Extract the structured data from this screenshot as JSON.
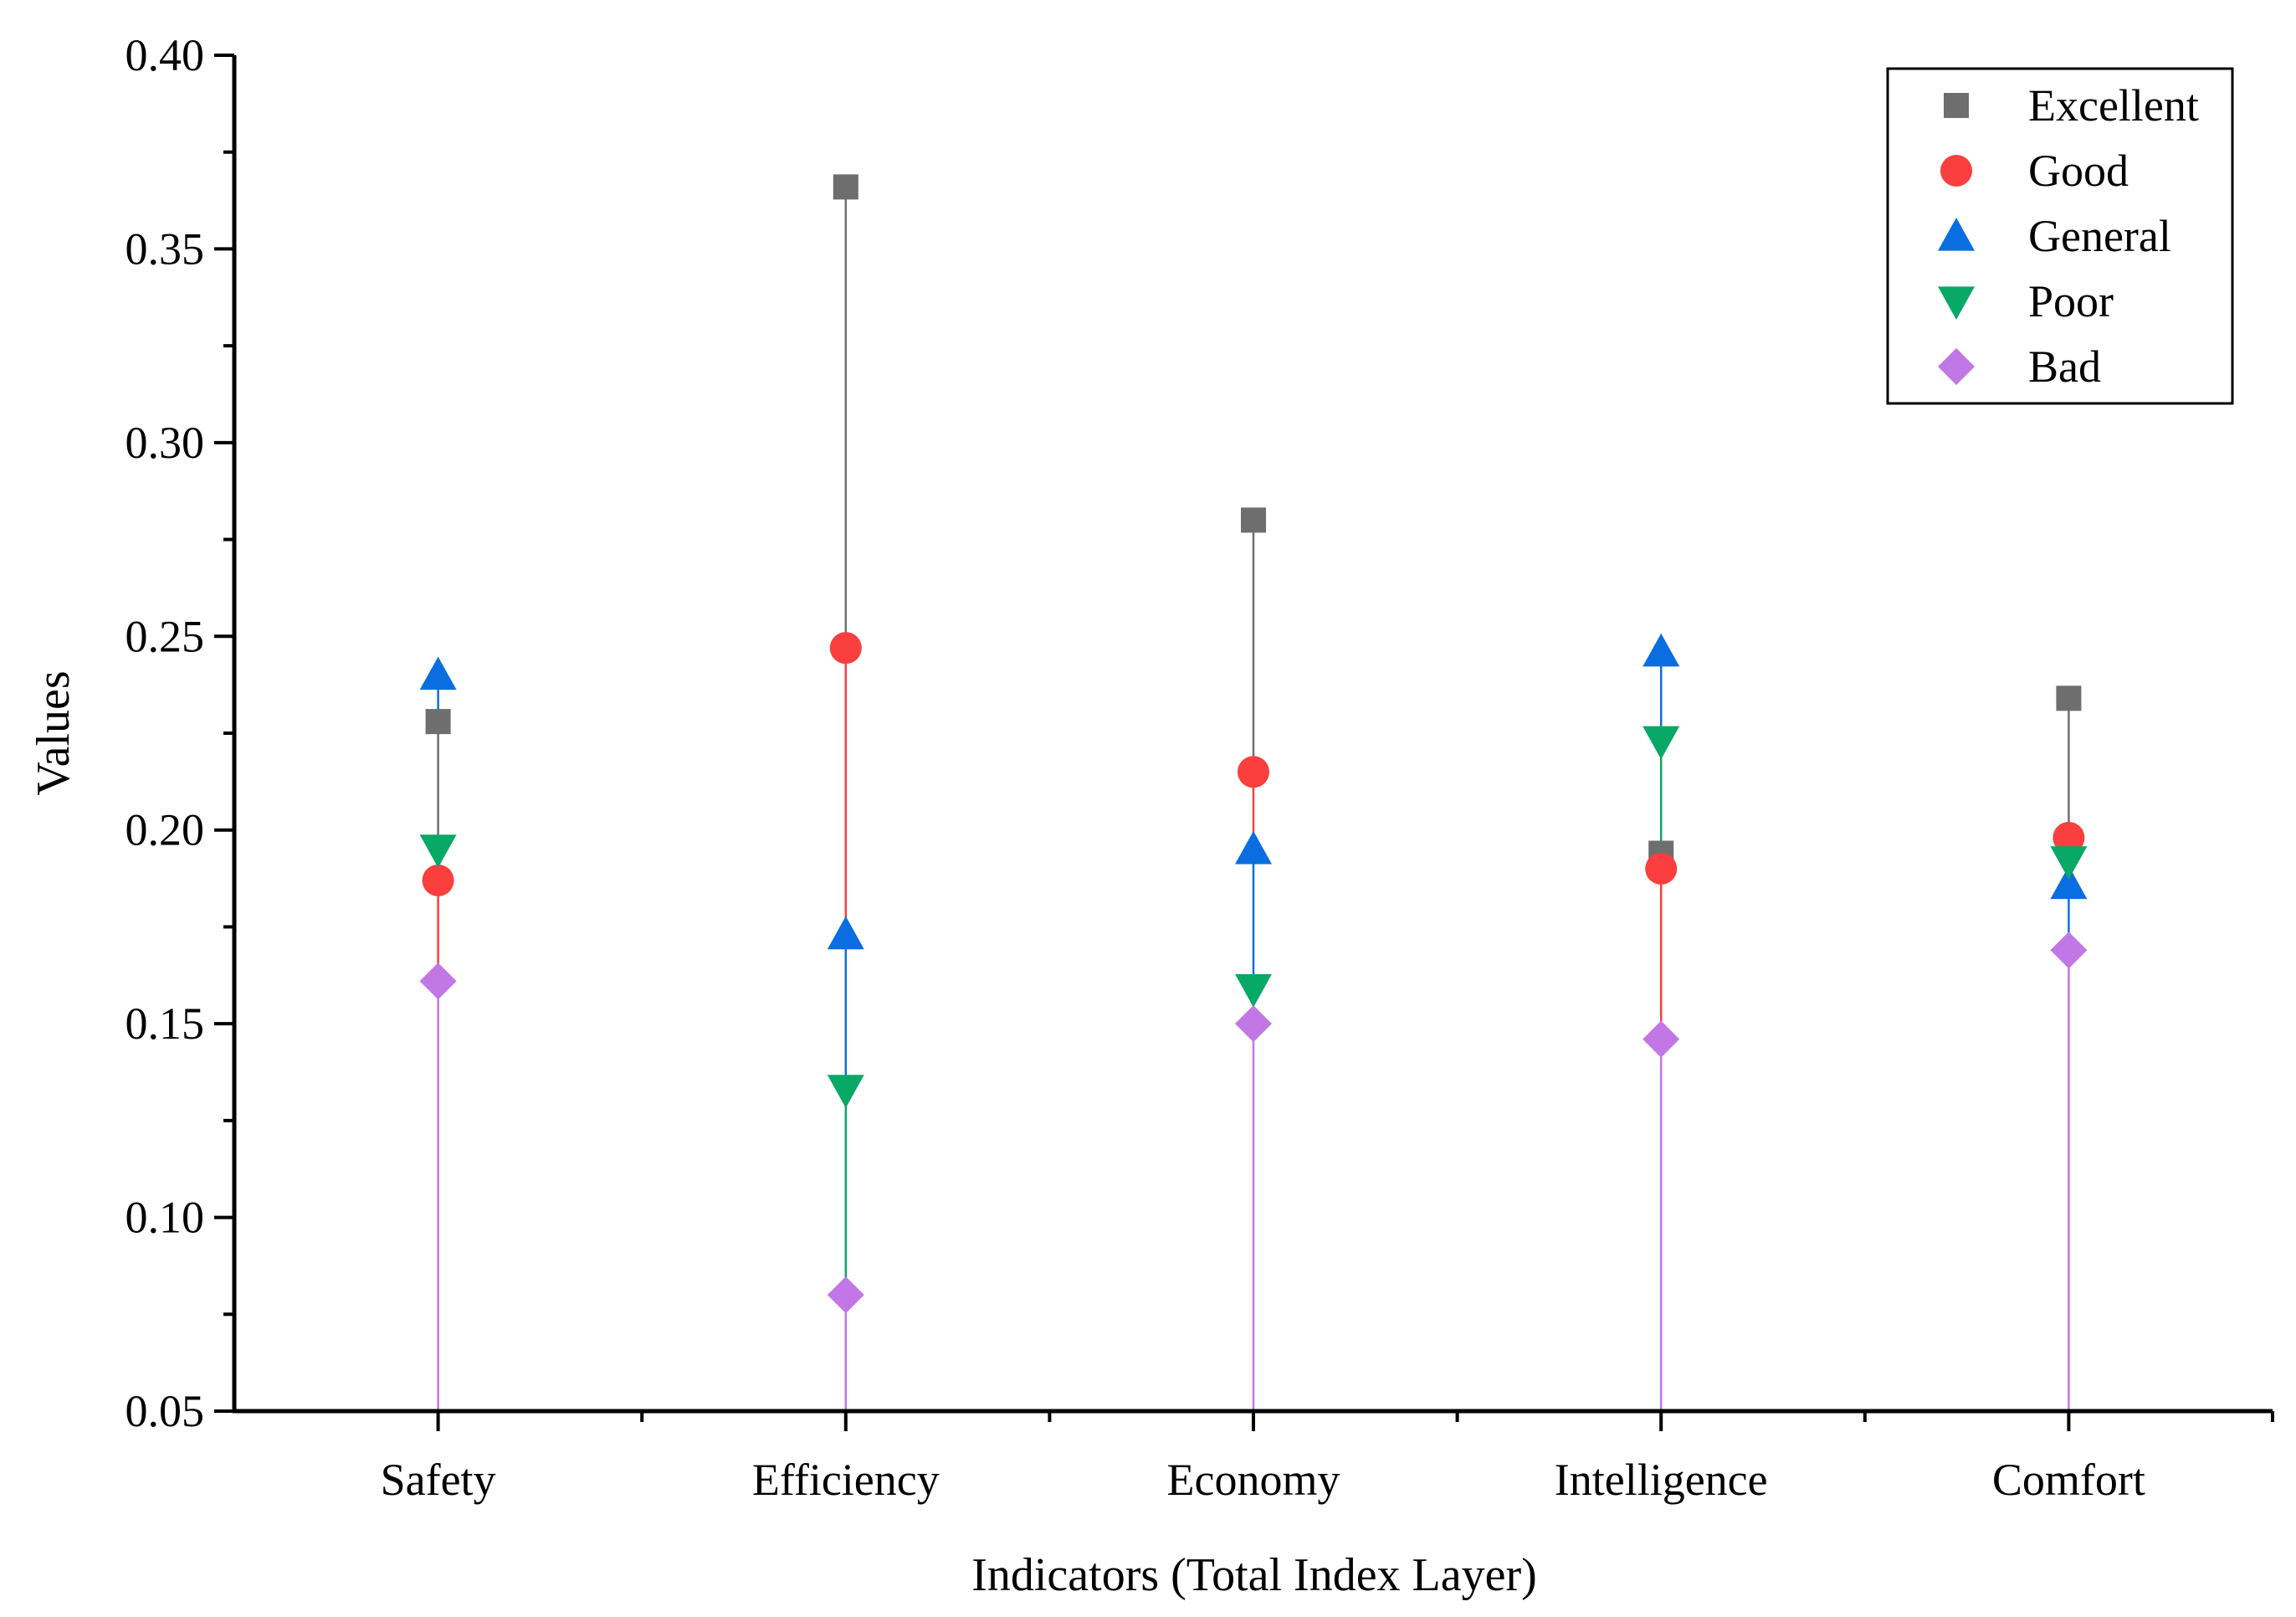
{
  "chart_data": {
    "type": "scatter",
    "style": "drop-line scatter (each marker joined to the next lower one by a vertical line in its series color)",
    "title": "",
    "xlabel": "Indicators (Total Index Layer)",
    "ylabel": "Values",
    "categories": [
      "Safety",
      "Efficiency",
      "Economy",
      "Intelligence",
      "Comfort"
    ],
    "ylim": [
      0.05,
      0.4
    ],
    "yticks": [
      0.05,
      0.1,
      0.15,
      0.2,
      0.25,
      0.3,
      0.35,
      0.4
    ],
    "ytick_labels": [
      "0.05",
      "0.10",
      "0.15",
      "0.20",
      "0.25",
      "0.30",
      "0.35",
      "0.40"
    ],
    "grid": false,
    "legend_position": "top-right",
    "series": [
      {
        "name": "Excellent",
        "marker": "square",
        "color": "#6e6e6e",
        "values": [
          0.228,
          0.366,
          0.28,
          0.194,
          0.234
        ]
      },
      {
        "name": "Good",
        "marker": "circle",
        "color": "#fb3e3e",
        "values": [
          0.187,
          0.247,
          0.215,
          0.19,
          0.198
        ]
      },
      {
        "name": "General",
        "marker": "triangle-up",
        "color": "#0a6ee0",
        "values": [
          0.24,
          0.173,
          0.195,
          0.246,
          0.186
        ]
      },
      {
        "name": "Poor",
        "marker": "triangle-down",
        "color": "#08a866",
        "values": [
          0.195,
          0.133,
          0.159,
          0.223,
          0.192
        ]
      },
      {
        "name": "Bad",
        "marker": "diamond",
        "color": "#c277e6",
        "values": [
          0.161,
          0.08,
          0.15,
          0.146,
          0.169
        ]
      }
    ]
  }
}
